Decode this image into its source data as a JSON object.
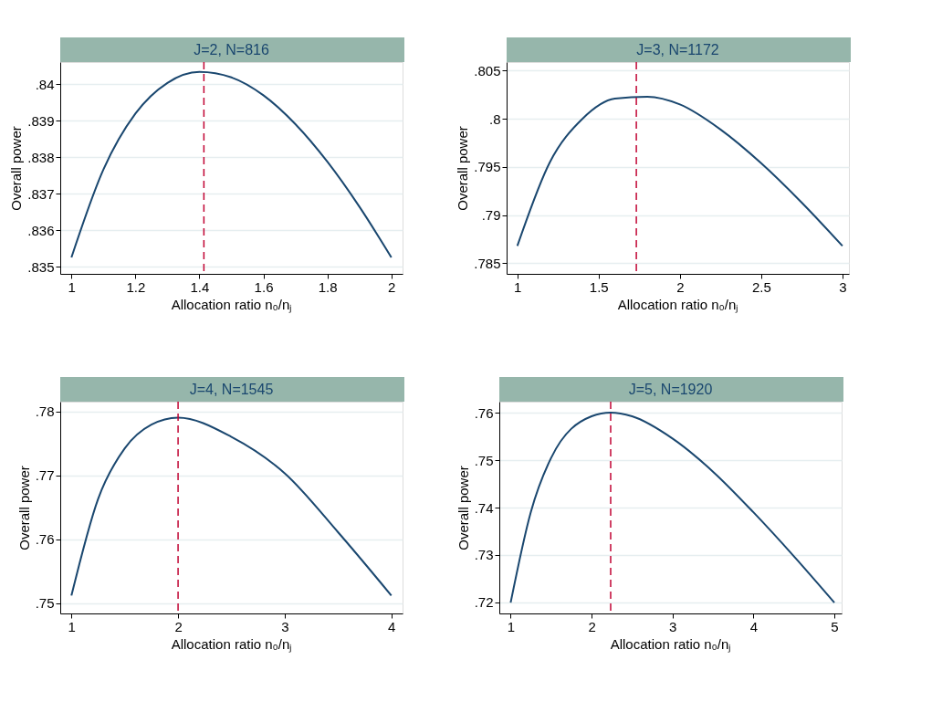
{
  "chart_data": [
    {
      "type": "line",
      "title": "J=2, N=816",
      "xlabel": "Allocation ratio n₀/nⱼ",
      "ylabel": "Overall power",
      "grid": "y",
      "x": [
        1,
        1.1,
        1.2,
        1.3,
        1.4,
        1.5,
        1.6,
        1.7,
        1.8,
        1.9,
        2
      ],
      "series": [
        {
          "color": "#1a476f",
          "values": [
            0.83525,
            0.83766,
            0.83919,
            0.84003,
            0.84033,
            0.84018,
            0.83969,
            0.8389,
            0.83787,
            0.83664,
            0.83525
          ]
        }
      ],
      "xlim": [
        0.965,
        2.035
      ],
      "xticks": [
        1,
        1.2,
        1.4,
        1.6,
        1.8,
        2
      ],
      "ylim": [
        0.8348,
        0.8406
      ],
      "yticks": [
        {
          "value": 0.835,
          "label": ".835"
        },
        {
          "value": 0.836,
          "label": ".836"
        },
        {
          "value": 0.837,
          "label": ".837"
        },
        {
          "value": 0.838,
          "label": ".838"
        },
        {
          "value": 0.839,
          "label": ".839"
        },
        {
          "value": 0.84,
          "label": ".84"
        }
      ],
      "ref_lines": [
        {
          "axis": "x",
          "value": 1.414,
          "color": "#c10534",
          "line_style": "dashed"
        }
      ]
    },
    {
      "type": "line",
      "title": "J=3, N=1172",
      "xlabel": "Allocation ratio n₀/nⱼ",
      "ylabel": "Overall power",
      "grid": "y",
      "x": [
        1,
        1.2,
        1.4,
        1.6,
        1.8,
        2,
        2.25,
        2.5,
        2.75,
        3
      ],
      "series": [
        {
          "color": "#1a476f",
          "values": [
            0.7868,
            0.7955,
            0.8,
            0.8021,
            0.8023,
            0.8015,
            0.7989,
            0.7954,
            0.7913,
            0.7868
          ]
        }
      ],
      "xlim": [
        0.934,
        3.04
      ],
      "xticks": [
        1,
        1.5,
        2,
        2.5,
        3
      ],
      "ylim": [
        0.7839,
        0.8059
      ],
      "yticks": [
        {
          "value": 0.785,
          "label": ".785"
        },
        {
          "value": 0.79,
          "label": ".79"
        },
        {
          "value": 0.795,
          "label": ".795"
        },
        {
          "value": 0.8,
          "label": ".8"
        },
        {
          "value": 0.805,
          "label": ".805"
        }
      ],
      "ref_lines": [
        {
          "axis": "x",
          "value": 1.732,
          "color": "#c10534",
          "line_style": "dashed"
        }
      ]
    },
    {
      "type": "line",
      "title": "J=4, N=1545",
      "xlabel": "Allocation ratio n₀/nⱼ",
      "ylabel": "Overall power",
      "grid": "y",
      "x": [
        1,
        1.25,
        1.5,
        1.75,
        2,
        2.5,
        3,
        3.5,
        4
      ],
      "series": [
        {
          "color": "#1a476f",
          "values": [
            0.7512,
            0.7663,
            0.7742,
            0.7779,
            0.779,
            0.776,
            0.7703,
            0.7611,
            0.7512
          ]
        }
      ],
      "xlim": [
        0.895,
        4.105
      ],
      "xticks": [
        1,
        2,
        3,
        4
      ],
      "ylim": [
        0.7484,
        0.7815
      ],
      "yticks": [
        {
          "value": 0.75,
          "label": ".75"
        },
        {
          "value": 0.76,
          "label": ".76"
        },
        {
          "value": 0.77,
          "label": ".77"
        },
        {
          "value": 0.78,
          "label": ".78"
        }
      ],
      "ref_lines": [
        {
          "axis": "x",
          "value": 2,
          "color": "#c10534",
          "line_style": "dashed"
        }
      ]
    },
    {
      "type": "line",
      "title": "J=5, N=1920",
      "xlabel": "Allocation ratio n₀/nⱼ",
      "ylabel": "Overall power",
      "grid": "y",
      "x": [
        1,
        1.25,
        1.5,
        2,
        2.236,
        2.5,
        3,
        3.5,
        4,
        4.5,
        5
      ],
      "series": [
        {
          "color": "#1a476f",
          "values": [
            0.7199,
            0.7391,
            0.7505,
            0.7593,
            0.7601,
            0.7593,
            0.7546,
            0.7476,
            0.739,
            0.7297,
            0.7199
          ]
        }
      ],
      "xlim": [
        0.86,
        5.09
      ],
      "xticks": [
        1,
        2,
        3,
        4,
        5
      ],
      "ylim": [
        0.7176,
        0.7624
      ],
      "yticks": [
        {
          "value": 0.72,
          "label": ".72"
        },
        {
          "value": 0.73,
          "label": ".73"
        },
        {
          "value": 0.74,
          "label": ".74"
        },
        {
          "value": 0.75,
          "label": ".75"
        },
        {
          "value": 0.76,
          "label": ".76"
        }
      ],
      "ref_lines": [
        {
          "axis": "x",
          "value": 2.236,
          "color": "#c10534",
          "line_style": "dashed"
        }
      ]
    }
  ]
}
